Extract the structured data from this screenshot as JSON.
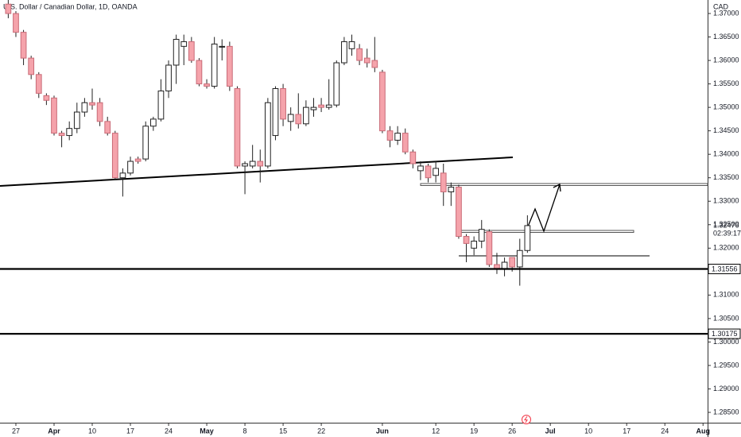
{
  "chart_data": {
    "type": "candlestick",
    "title": "U.S. Dollar / Canadian Dollar, 1D, OANDA",
    "currency": "CAD",
    "x": [
      0,
      1,
      2,
      3,
      4,
      5,
      6,
      7,
      8,
      9,
      10,
      11,
      12,
      13,
      14,
      15,
      16,
      17,
      18,
      19,
      20,
      21,
      22,
      23,
      24,
      25,
      26,
      27,
      28,
      29,
      30,
      31,
      32,
      33,
      34,
      35,
      36,
      37,
      38,
      39,
      40,
      41,
      42,
      43,
      44,
      45,
      46,
      47,
      48,
      49,
      50,
      51,
      52,
      53,
      54,
      55,
      56,
      57,
      58,
      59,
      60,
      61,
      62,
      63,
      64,
      65,
      66,
      67,
      68
    ],
    "open": [
      1.372,
      1.37,
      1.366,
      1.3605,
      1.357,
      1.3525,
      1.352,
      1.3445,
      1.344,
      1.3455,
      1.349,
      1.351,
      1.351,
      1.347,
      1.3445,
      1.335,
      1.336,
      1.339,
      1.339,
      1.346,
      1.3475,
      1.3535,
      1.359,
      1.363,
      1.364,
      1.36,
      1.355,
      1.3545,
      1.363,
      1.363,
      1.354,
      1.3375,
      1.3375,
      1.3385,
      1.3375,
      1.344,
      1.354,
      1.347,
      1.3485,
      1.3465,
      1.3495,
      1.3505,
      1.35,
      1.3505,
      1.3595,
      1.3625,
      1.3625,
      1.3605,
      1.36,
      1.3575,
      1.345,
      1.343,
      1.3445,
      1.3405,
      1.3365,
      1.3375,
      1.3355,
      1.336,
      1.332,
      1.333,
      1.3225,
      1.32,
      1.3215,
      1.3235,
      1.3165,
      1.3155,
      1.318,
      1.316,
      1.3195
    ],
    "high": [
      1.373,
      1.3705,
      1.3665,
      1.361,
      1.3575,
      1.353,
      1.3525,
      1.345,
      1.347,
      1.351,
      1.352,
      1.354,
      1.352,
      1.348,
      1.345,
      1.337,
      1.3395,
      1.3395,
      1.347,
      1.348,
      1.356,
      1.36,
      1.3655,
      1.3655,
      1.365,
      1.3605,
      1.356,
      1.365,
      1.3645,
      1.364,
      1.3545,
      1.3385,
      1.342,
      1.341,
      1.352,
      1.3545,
      1.355,
      1.35,
      1.353,
      1.3515,
      1.352,
      1.352,
      1.356,
      1.36,
      1.365,
      1.3655,
      1.3635,
      1.3625,
      1.365,
      1.358,
      1.346,
      1.346,
      1.3455,
      1.341,
      1.3385,
      1.338,
      1.3385,
      1.338,
      1.334,
      1.3335,
      1.323,
      1.3225,
      1.326,
      1.324,
      1.319,
      1.318,
      1.318,
      1.322,
      1.327
    ],
    "low": [
      1.369,
      1.365,
      1.359,
      1.356,
      1.352,
      1.3505,
      1.344,
      1.3415,
      1.343,
      1.3445,
      1.348,
      1.3495,
      1.346,
      1.344,
      1.3345,
      1.331,
      1.3355,
      1.338,
      1.3385,
      1.345,
      1.347,
      1.352,
      1.355,
      1.359,
      1.3595,
      1.3545,
      1.354,
      1.354,
      1.36,
      1.3535,
      1.337,
      1.3315,
      1.337,
      1.334,
      1.337,
      1.343,
      1.346,
      1.345,
      1.3455,
      1.346,
      1.348,
      1.349,
      1.3495,
      1.35,
      1.359,
      1.361,
      1.359,
      1.3585,
      1.3575,
      1.3445,
      1.3415,
      1.342,
      1.34,
      1.337,
      1.3345,
      1.334,
      1.334,
      1.329,
      1.329,
      1.322,
      1.317,
      1.3185,
      1.32,
      1.316,
      1.3145,
      1.314,
      1.315,
      1.312,
      1.319
    ],
    "close": [
      1.37,
      1.366,
      1.3605,
      1.357,
      1.353,
      1.3515,
      1.3445,
      1.344,
      1.3455,
      1.349,
      1.351,
      1.3505,
      1.347,
      1.3445,
      1.335,
      1.336,
      1.3385,
      1.3385,
      1.346,
      1.3475,
      1.3535,
      1.359,
      1.3645,
      1.364,
      1.36,
      1.355,
      1.3545,
      1.3635,
      1.363,
      1.3545,
      1.3375,
      1.338,
      1.3385,
      1.3375,
      1.351,
      1.354,
      1.3475,
      1.3485,
      1.3465,
      1.35,
      1.35,
      1.35,
      1.3505,
      1.3595,
      1.364,
      1.364,
      1.36,
      1.3595,
      1.3585,
      1.345,
      1.343,
      1.3445,
      1.3405,
      1.338,
      1.3375,
      1.335,
      1.337,
      1.332,
      1.333,
      1.3225,
      1.321,
      1.3215,
      1.324,
      1.3165,
      1.3155,
      1.317,
      1.316,
      1.3195,
      1.3248
    ],
    "up_color": "#ffffff",
    "down_color": "#f5a3ab",
    "xlim": [
      -1.08,
      91.6
    ],
    "xticks": [
      {
        "value": 1,
        "label": "27"
      },
      {
        "value": 6,
        "label": "Apr"
      },
      {
        "value": 11,
        "label": "10"
      },
      {
        "value": 16,
        "label": "17"
      },
      {
        "value": 21,
        "label": "24"
      },
      {
        "value": 26,
        "label": "May"
      },
      {
        "value": 31,
        "label": "8"
      },
      {
        "value": 36,
        "label": "15"
      },
      {
        "value": 41,
        "label": "22"
      },
      {
        "value": 49,
        "label": "Jun"
      },
      {
        "value": 56,
        "label": "12"
      },
      {
        "value": 61,
        "label": "19"
      },
      {
        "value": 66,
        "label": "26"
      },
      {
        "value": 71,
        "label": "Jul"
      },
      {
        "value": 76,
        "label": "10"
      },
      {
        "value": 81,
        "label": "17"
      },
      {
        "value": 86,
        "label": "24"
      },
      {
        "value": 91,
        "label": "Aug"
      }
    ],
    "ylim": [
      1.28314,
      1.37288
    ],
    "yticks": [
      {
        "value": 1.285,
        "label": "1.28500"
      },
      {
        "value": 1.29,
        "label": "1.29000"
      },
      {
        "value": 1.295,
        "label": "1.29500"
      },
      {
        "value": 1.3,
        "label": "1.30000"
      },
      {
        "value": 1.305,
        "label": "1.30500"
      },
      {
        "value": 1.31,
        "label": "1.31000"
      },
      {
        "value": 1.315,
        "label": "1.31500"
      },
      {
        "value": 1.32,
        "label": "1.32000"
      },
      {
        "value": 1.325,
        "label": "1.32500"
      },
      {
        "value": 1.33,
        "label": "1.33000"
      },
      {
        "value": 1.335,
        "label": "1.33500"
      },
      {
        "value": 1.34,
        "label": "1.34000"
      },
      {
        "value": 1.345,
        "label": "1.34500"
      },
      {
        "value": 1.35,
        "label": "1.35000"
      },
      {
        "value": 1.355,
        "label": "1.35500"
      },
      {
        "value": 1.36,
        "label": "1.36000"
      },
      {
        "value": 1.365,
        "label": "1.36500"
      },
      {
        "value": 1.37,
        "label": "1.37000"
      }
    ],
    "levels": [
      {
        "value": 1.31556,
        "label": "1.31556"
      },
      {
        "value": 1.30175,
        "label": "1.30175"
      }
    ],
    "last_price": {
      "value": 1.32476,
      "label": "1.32476"
    },
    "countdown": "02:39:17"
  }
}
